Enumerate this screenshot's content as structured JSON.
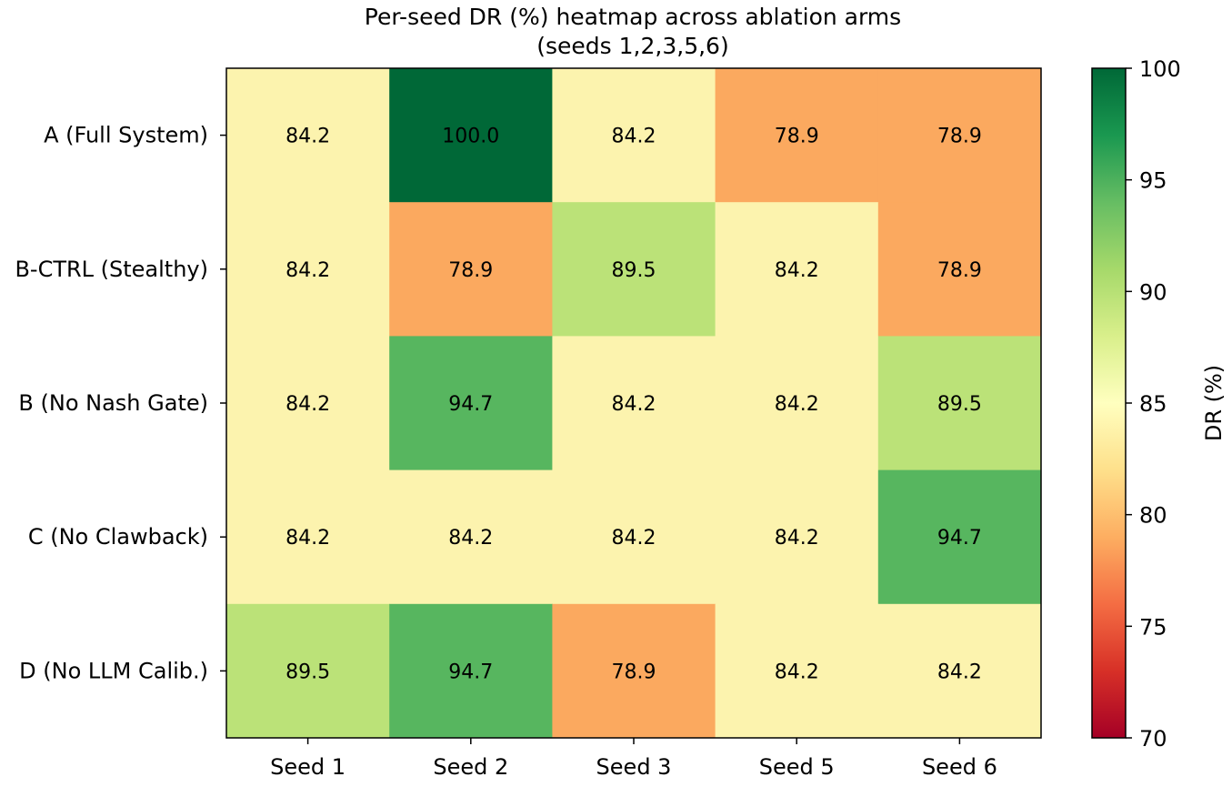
{
  "chart_data": {
    "type": "heatmap",
    "title": [
      "Per-seed DR (%) heatmap across ablation arms",
      "(seeds 1,2,3,5,6)"
    ],
    "x_categories": [
      "Seed 1",
      "Seed 2",
      "Seed 3",
      "Seed 5",
      "Seed 6"
    ],
    "y_categories": [
      "A (Full System)",
      "B-CTRL (Stealthy)",
      "B (No Nash Gate)",
      "C (No Clawback)",
      "D (No LLM Calib.)"
    ],
    "values": [
      [
        84.2,
        100.0,
        84.2,
        78.9,
        78.9
      ],
      [
        84.2,
        78.9,
        89.5,
        84.2,
        78.9
      ],
      [
        84.2,
        94.7,
        84.2,
        84.2,
        89.5
      ],
      [
        84.2,
        84.2,
        84.2,
        84.2,
        94.7
      ],
      [
        89.5,
        94.7,
        78.9,
        84.2,
        84.2
      ]
    ],
    "colorbar": {
      "label": "DR (%)",
      "range": [
        70,
        100
      ],
      "ticks": [
        70,
        75,
        80,
        85,
        90,
        95,
        100
      ],
      "colormap": "RdYlGn"
    },
    "colors": {
      "100.0": "#006837",
      "94.7": "#57b65f",
      "89.5": "#bbe278",
      "84.2": "#fcf3ae",
      "78.9": "#fba95f"
    }
  }
}
